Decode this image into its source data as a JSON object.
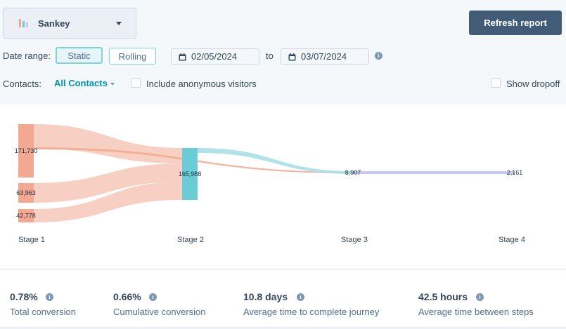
{
  "chart_selector": {
    "label": "Sankey",
    "icon": "bar-chart-icon"
  },
  "refresh_button": {
    "label": "Refresh report"
  },
  "date_range": {
    "label": "Date range:",
    "static_label": "Static",
    "rolling_label": "Rolling",
    "start_date": "02/05/2024",
    "connector": "to",
    "end_date": "03/07/2024"
  },
  "contacts": {
    "label": "Contacts:",
    "selected": "All Contacts",
    "include_anonymous_label": "Include anonymous visitors"
  },
  "show_dropoff_label": "Show dropoff",
  "chart_data": {
    "type": "sankey",
    "stages": [
      "Stage 1",
      "Stage 2",
      "Stage 3",
      "Stage 4"
    ],
    "nodes": [
      {
        "id": "s1a",
        "stage": "Stage 1",
        "value": 171730,
        "label": "171,730",
        "color": "#f2a891"
      },
      {
        "id": "s1b",
        "stage": "Stage 1",
        "value": 63963,
        "label": "63,963",
        "color": "#f2a891"
      },
      {
        "id": "s1c",
        "stage": "Stage 1",
        "value": 42778,
        "label": "42,778",
        "color": "#f2a891"
      },
      {
        "id": "s2",
        "stage": "Stage 2",
        "value": 165988,
        "label": "165,988",
        "color": "#6acdd6"
      },
      {
        "id": "s3",
        "stage": "Stage 3",
        "value": 8907,
        "label": "8,907",
        "color": "#a9dfe6"
      },
      {
        "id": "s4",
        "stage": "Stage 4",
        "value": 2161,
        "label": "2,161",
        "color": "#c9c6ef"
      }
    ],
    "colors": {
      "stage1": "#f2a891",
      "stage2": "#6acdd6",
      "stage3": "#a9dfe6",
      "stage4": "#c9c6ef"
    }
  },
  "stats": [
    {
      "value": "0.78%",
      "label": "Total conversion"
    },
    {
      "value": "0.66%",
      "label": "Cumulative conversion"
    },
    {
      "value": "10.8 days",
      "label": "Average time to complete journey"
    },
    {
      "value": "42.5 hours",
      "label": "Average time between steps"
    }
  ]
}
